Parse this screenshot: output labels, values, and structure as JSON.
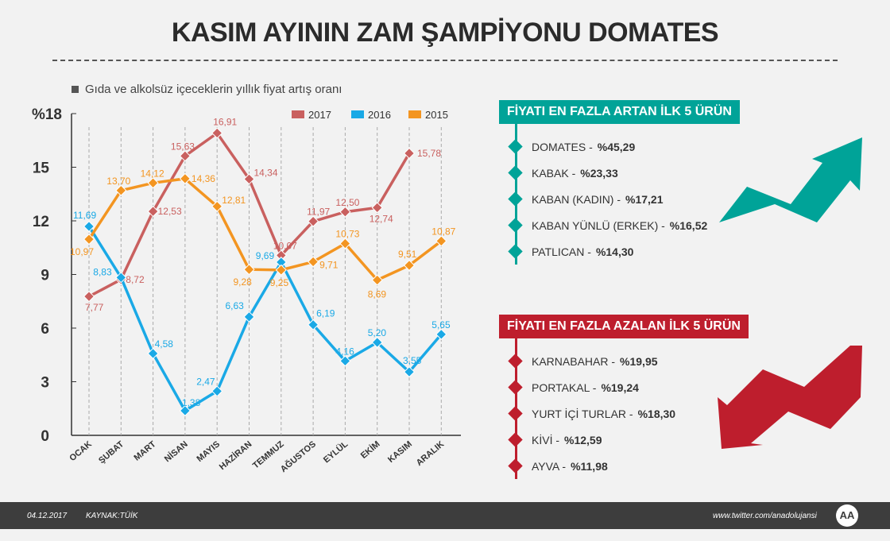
{
  "title": "KASIM AYININ ZAM ŞAMPİYONU DOMATES",
  "subtitle": "Gıda ve alkolsüz içeceklerin yıllık fiyat artış oranı",
  "chart_data": {
    "type": "line",
    "ylabel": "%18",
    "ylim": [
      0,
      18
    ],
    "yticks": [
      "0",
      "3",
      "6",
      "9",
      "12",
      "15",
      "%18"
    ],
    "categories": [
      "OCAK",
      "ŞUBAT",
      "MART",
      "NİSAN",
      "MAYIS",
      "HAZİRAN",
      "TEMMUZ",
      "AĞUSTOS",
      "EYLÜL",
      "EKİM",
      "KASIM",
      "ARALIK"
    ],
    "legend_position": "top-right",
    "series": [
      {
        "name": "2017",
        "color": "#c9605f",
        "values": [
          7.77,
          8.72,
          12.53,
          15.63,
          16.91,
          14.34,
          10.07,
          11.97,
          12.5,
          12.74,
          15.78,
          null
        ],
        "labels": [
          "7,77",
          "8,72",
          "12,53",
          "15,63",
          "16,91",
          "14,34",
          "10,07",
          "11,97",
          "12,50",
          "12,74",
          "15,78",
          ""
        ]
      },
      {
        "name": "2016",
        "color": "#1aa9e6",
        "values": [
          11.69,
          8.83,
          4.58,
          1.38,
          2.47,
          6.63,
          9.69,
          6.19,
          4.16,
          5.2,
          3.55,
          5.65
        ],
        "labels": [
          "11,69",
          "8,83",
          "4,58",
          "1,38",
          "2,47",
          "6,63",
          "9,69",
          "6,19",
          "4,16",
          "5,20",
          "3,55",
          "5,65"
        ]
      },
      {
        "name": "2015",
        "color": "#f39521",
        "values": [
          10.97,
          13.7,
          14.12,
          14.36,
          12.81,
          9.28,
          9.25,
          9.71,
          10.73,
          8.69,
          9.51,
          10.87
        ],
        "labels": [
          "10,97",
          "13,70",
          "14,12",
          "14,36",
          "12,81",
          "9,28",
          "9,25",
          "9,71",
          "10,73",
          "8,69",
          "9,51",
          "10,87"
        ]
      }
    ]
  },
  "increase": {
    "title": "FİYATI EN FAZLA ARTAN İLK 5 ÜRÜN",
    "color": "#00a398",
    "items": [
      {
        "name": "DOMATES  -",
        "value": "%45,29"
      },
      {
        "name": "KABAK -",
        "value": "%23,33"
      },
      {
        "name": "KABAN (KADIN)  -",
        "value": "%17,21"
      },
      {
        "name": "KABAN YÜNLÜ (ERKEK)  -",
        "value": "%16,52"
      },
      {
        "name": "PATLICAN  -",
        "value": "%14,30"
      }
    ]
  },
  "decrease": {
    "title": "FİYATI EN FAZLA AZALAN İLK 5 ÜRÜN",
    "color": "#be1e2d",
    "items": [
      {
        "name": "KARNABAHAR  -",
        "value": "%19,95"
      },
      {
        "name": "PORTAKAL  -",
        "value": "%19,24"
      },
      {
        "name": "YURT İÇİ TURLAR  -",
        "value": "%18,30"
      },
      {
        "name": "KİVİ  -",
        "value": "%12,59"
      },
      {
        "name": "AYVA  -",
        "value": "%11,98"
      }
    ]
  },
  "footer": {
    "date": "04.12.2017",
    "source": "KAYNAK:TÜİK",
    "twitter": "www.twitter.com/anadolujansi",
    "logo": "AA"
  }
}
